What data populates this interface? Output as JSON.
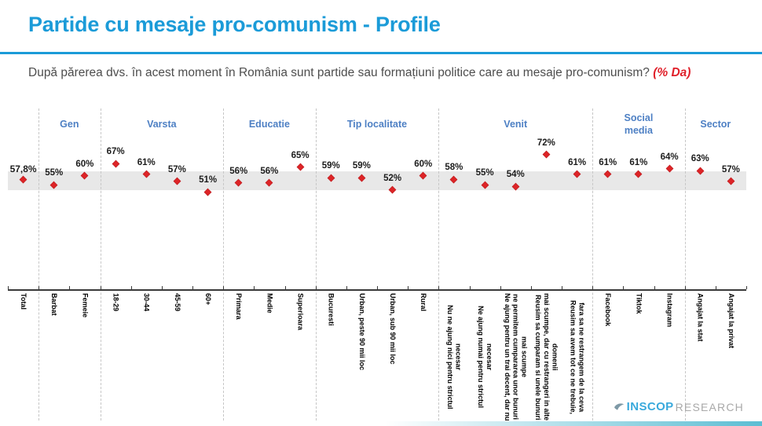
{
  "page": {
    "title": "Partide cu mesaje pro-comunism - Profile",
    "question_text": "După părerea dvs. în acest moment în România sunt partide sau formațiuni politice care au mesaje pro-comunism?",
    "question_note": "(% Da)"
  },
  "logo": {
    "brand": "INSCOP",
    "suffix": "RESEARCH",
    "icon": "leaf-swoosh-icon"
  },
  "colors": {
    "accent_blue": "#1B9BD8",
    "group_header_blue": "#4E80C4",
    "marker_red": "#DD2427",
    "band_gray": "#E8E8E8"
  },
  "chart_data": {
    "type": "scatter",
    "marker": "diamond",
    "value_suffix": "%",
    "ylim": [
      45,
      80
    ],
    "grid": false,
    "legend": false,
    "highlight_band": {
      "from": 51.9,
      "to": 62.5
    },
    "groups": [
      {
        "label": "",
        "items": [
          {
            "category": "Total",
            "value": 57.8,
            "display": "57,8%"
          }
        ]
      },
      {
        "label": "Gen",
        "items": [
          {
            "category": "Barbat",
            "value": 55,
            "display": "55%"
          },
          {
            "category": "Femeie",
            "value": 60,
            "display": "60%"
          }
        ]
      },
      {
        "label": "Varsta",
        "items": [
          {
            "category": "18-29",
            "value": 67,
            "display": "67%"
          },
          {
            "category": "30-44",
            "value": 61,
            "display": "61%"
          },
          {
            "category": "45-59",
            "value": 57,
            "display": "57%"
          },
          {
            "category": "60+",
            "value": 51,
            "display": "51%"
          }
        ]
      },
      {
        "label": "Educatie",
        "items": [
          {
            "category": "Primara",
            "value": 56,
            "display": "56%"
          },
          {
            "category": "Medie",
            "value": 56,
            "display": "56%"
          },
          {
            "category": "Superioara",
            "value": 65,
            "display": "65%"
          }
        ]
      },
      {
        "label": "Tip localitate",
        "items": [
          {
            "category": "Bucuresti",
            "value": 59,
            "display": "59%"
          },
          {
            "category": "Urban, peste 90 mii loc",
            "value": 59,
            "display": "59%"
          },
          {
            "category": "Urban, sub 90 mii loc",
            "value": 52,
            "display": "52%"
          },
          {
            "category": "Rural",
            "value": 60,
            "display": "60%"
          }
        ]
      },
      {
        "label": "Venit",
        "items": [
          {
            "category": "Nu ne ajung nici pentru strictul necesar",
            "value": 58,
            "display": "58%"
          },
          {
            "category": "Ne ajung numai pentru strictul necesar",
            "value": 55,
            "display": "55%"
          },
          {
            "category": "Ne ajung pentru un trai decent, dar nu ne permitem cumpararea unor bunuri mai scumpe",
            "value": 54,
            "display": "54%"
          },
          {
            "category": "Reusim sa cumparam si unele bunuri mai scumpe, dar cu restrangeri in alte domenii",
            "value": 72,
            "display": "72%"
          },
          {
            "category": "Reusim sa avem tot ce ne trebuie, fara sa ne restrangem de la ceva",
            "value": 61,
            "display": "61%"
          }
        ]
      },
      {
        "label": "Social\nmedia",
        "items": [
          {
            "category": "Facebook",
            "value": 61,
            "display": "61%"
          },
          {
            "category": "Tiktok",
            "value": 61,
            "display": "61%"
          },
          {
            "category": "Instagram",
            "value": 64,
            "display": "64%"
          }
        ]
      },
      {
        "label": "Sector",
        "items": [
          {
            "category": "Angajat la stat",
            "value": 63,
            "display": "63%"
          },
          {
            "category": "Angajat la privat",
            "value": 57,
            "display": "57%"
          }
        ]
      }
    ]
  }
}
